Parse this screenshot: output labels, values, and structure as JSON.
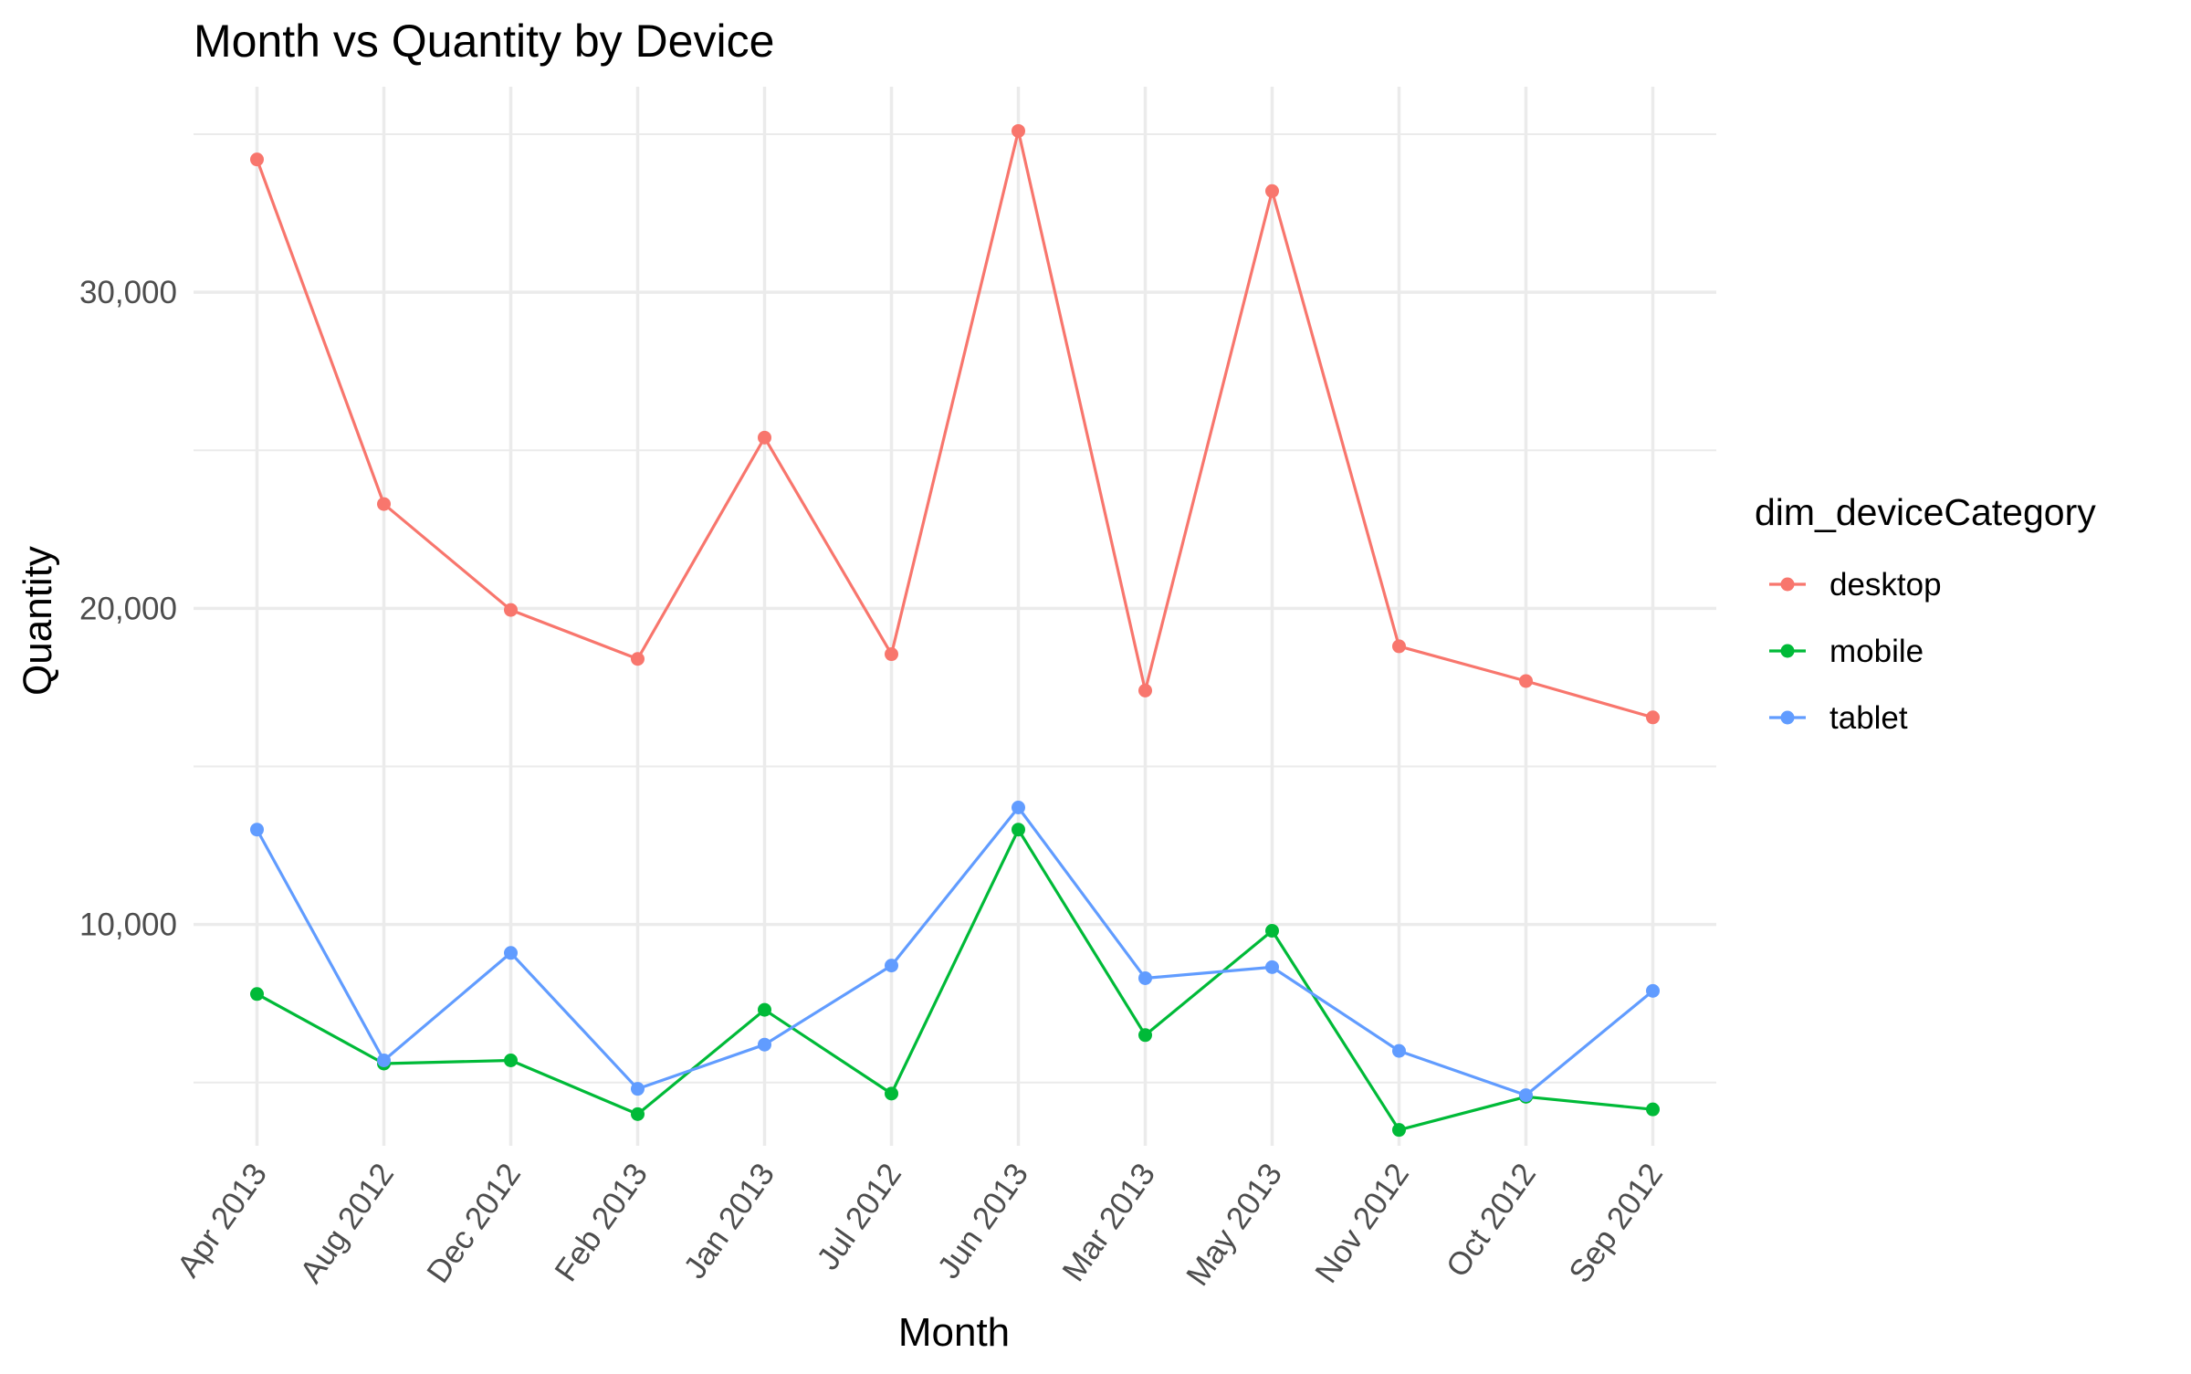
{
  "chart_data": {
    "type": "line",
    "title": "Month vs Quantity by Device",
    "xlabel": "Month",
    "ylabel": "Quantity",
    "categories": [
      "Apr 2013",
      "Aug 2012",
      "Dec 2012",
      "Feb 2013",
      "Jan 2013",
      "Jul 2012",
      "Jun 2013",
      "Mar 2013",
      "May 2013",
      "Nov 2012",
      "Oct 2012",
      "Sep 2012"
    ],
    "y_ticks": [
      10000,
      20000,
      30000
    ],
    "y_tick_labels": [
      "10,000",
      "20,000",
      "30,000"
    ],
    "ylim": [
      3000,
      36500
    ],
    "grid": true,
    "legend": {
      "title": "dim_deviceCategory",
      "position": "right"
    },
    "series": [
      {
        "name": "desktop",
        "color": "#F8766D",
        "values": [
          34200,
          23300,
          19950,
          18400,
          25400,
          18550,
          35100,
          17400,
          33200,
          18800,
          17700,
          16550
        ]
      },
      {
        "name": "mobile",
        "color": "#00BA38",
        "values": [
          7800,
          5600,
          5700,
          4000,
          7300,
          4650,
          13000,
          6500,
          9800,
          3500,
          4550,
          4150
        ]
      },
      {
        "name": "tablet",
        "color": "#619CFF",
        "values": [
          13000,
          5700,
          9100,
          4800,
          6200,
          8700,
          13700,
          8300,
          8650,
          6000,
          4600,
          7900
        ]
      }
    ]
  }
}
